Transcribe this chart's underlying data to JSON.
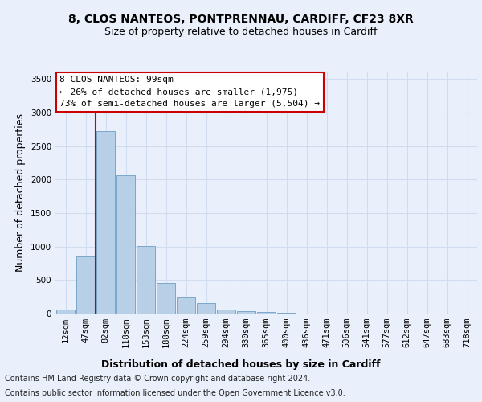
{
  "title_line1": "8, CLOS NANTEOS, PONTPRENNAU, CARDIFF, CF23 8XR",
  "title_line2": "Size of property relative to detached houses in Cardiff",
  "xlabel": "Distribution of detached houses by size in Cardiff",
  "ylabel": "Number of detached properties",
  "categories": [
    "12sqm",
    "47sqm",
    "82sqm",
    "118sqm",
    "153sqm",
    "188sqm",
    "224sqm",
    "259sqm",
    "294sqm",
    "330sqm",
    "365sqm",
    "400sqm",
    "436sqm",
    "471sqm",
    "506sqm",
    "541sqm",
    "577sqm",
    "612sqm",
    "647sqm",
    "683sqm",
    "718sqm"
  ],
  "values": [
    60,
    850,
    2720,
    2060,
    1010,
    455,
    240,
    160,
    65,
    40,
    25,
    15,
    0,
    0,
    0,
    0,
    0,
    0,
    0,
    0,
    0
  ],
  "bar_color": "#b8cfe8",
  "bar_edge_color": "#6d9ec4",
  "vline_x_index": 2,
  "vline_color": "#cc0000",
  "annotation_text": "8 CLOS NANTEOS: 99sqm\n← 26% of detached houses are smaller (1,975)\n73% of semi-detached houses are larger (5,504) →",
  "annotation_box_color": "#ffffff",
  "annotation_box_edge_color": "#cc0000",
  "ylim": [
    0,
    3600
  ],
  "yticks": [
    0,
    500,
    1000,
    1500,
    2000,
    2500,
    3000,
    3500
  ],
  "footer_line1": "Contains HM Land Registry data © Crown copyright and database right 2024.",
  "footer_line2": "Contains public sector information licensed under the Open Government Licence v3.0.",
  "bg_color": "#eaf0fb",
  "plot_bg_color": "#eaf0fb",
  "grid_color": "#d0ddf0",
  "title_fontsize": 10,
  "subtitle_fontsize": 9,
  "ylabel_fontsize": 9,
  "xlabel_fontsize": 9,
  "tick_fontsize": 7.5,
  "annot_fontsize": 8,
  "footer_fontsize": 7
}
